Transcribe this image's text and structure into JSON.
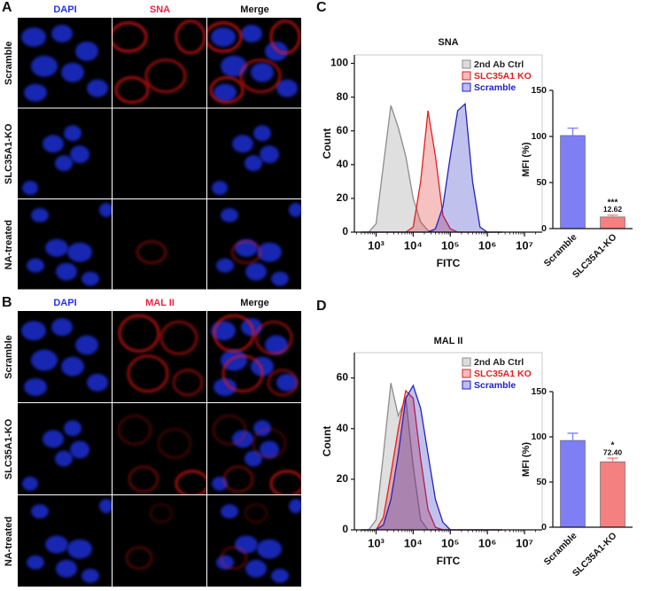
{
  "panel_labels": [
    "A",
    "B",
    "C",
    "D"
  ],
  "microscopy": [
    {
      "columns": [
        "DAPI",
        "SNA",
        "Merge"
      ],
      "column_colors": [
        "#2233ee",
        "#ee2244",
        "#111111"
      ],
      "rows": [
        "Scramble",
        "SLC35A1-KO",
        "NA-treated"
      ]
    },
    {
      "columns": [
        "DAPI",
        "MAL II",
        "Merge"
      ],
      "column_colors": [
        "#2233ee",
        "#ee2244",
        "#111111"
      ],
      "rows": [
        "Scramble",
        "SLC35A1-KO",
        "NA-treated"
      ]
    }
  ],
  "chart_data": [
    {
      "type": "area",
      "title": "SNA",
      "x_label": "FITC",
      "y_label": "Count",
      "xscale": "log",
      "legend": "upper right",
      "x": [
        400,
        630,
        1000,
        1580,
        2510,
        3980,
        6310,
        10000,
        15850,
        25120,
        39810,
        63100,
        100000,
        158500,
        251200,
        398100,
        631000,
        1000000,
        1585000,
        2512000
      ],
      "series": [
        {
          "name": "2nd Ab Ctrl",
          "color": "#8c8c8c",
          "values": [
            0,
            0,
            5,
            40,
            75,
            62,
            45,
            20,
            6,
            1,
            0,
            0,
            0,
            0,
            0,
            0,
            0,
            0,
            0,
            0
          ]
        },
        {
          "name": "SLC35A1 KO",
          "color": "#e02020",
          "values": [
            0,
            0,
            0,
            0,
            0,
            0,
            0,
            3,
            30,
            72,
            45,
            10,
            2,
            0,
            0,
            0,
            0,
            0,
            0,
            0
          ]
        },
        {
          "name": "Scramble",
          "color": "#2222c0",
          "values": [
            0,
            0,
            0,
            0,
            0,
            0,
            0,
            0,
            0,
            0,
            2,
            15,
            45,
            72,
            76,
            30,
            3,
            0,
            0,
            0
          ]
        }
      ],
      "xlim": [
        260,
        30000000
      ],
      "xticks": [
        {
          "value": 1000,
          "label": "10³"
        },
        {
          "value": 10000,
          "label": "10⁴"
        },
        {
          "value": 100000,
          "label": "10⁵"
        },
        {
          "value": 1000000,
          "label": "10⁶"
        },
        {
          "value": 10000000,
          "label": "10⁷"
        }
      ],
      "ylim": [
        0,
        105
      ],
      "yticks": [
        0,
        20,
        40,
        60,
        80,
        100
      ]
    },
    {
      "type": "bar",
      "y_label": "MFI (%)",
      "categories": [
        "Scramble",
        "SLC35A1-KO"
      ],
      "colors": [
        "#7f7ff5",
        "#f58080"
      ],
      "values": [
        101,
        12.62
      ],
      "errors": [
        8,
        2
      ],
      "value_labels": [
        null,
        "12.62"
      ],
      "significance": [
        null,
        "***"
      ],
      "ylim": [
        0,
        150
      ],
      "yticks": [
        0,
        50,
        100,
        150
      ]
    },
    {
      "type": "area",
      "title": "MAL II",
      "x_label": "FITC",
      "y_label": "Count",
      "xscale": "log",
      "legend": "upper right",
      "x": [
        400,
        630,
        1000,
        1580,
        2510,
        3980,
        6310,
        10000,
        15850,
        25120,
        39810,
        63100,
        100000,
        158500,
        251200,
        398100,
        631000,
        1000000,
        1585000,
        2512000
      ],
      "series": [
        {
          "name": "2nd Ab Ctrl",
          "color": "#8c8c8c",
          "values": [
            0,
            0,
            4,
            30,
            58,
            45,
            52,
            25,
            4,
            0,
            0,
            0,
            0,
            0,
            0,
            0,
            0,
            0,
            0,
            0
          ]
        },
        {
          "name": "SLC35A1 KO",
          "color": "#e02020",
          "values": [
            0,
            0,
            0,
            5,
            22,
            40,
            55,
            52,
            28,
            8,
            1,
            0,
            0,
            0,
            0,
            0,
            0,
            0,
            0,
            0
          ]
        },
        {
          "name": "Scramble",
          "color": "#2222c0",
          "values": [
            0,
            0,
            0,
            2,
            12,
            30,
            52,
            57,
            48,
            30,
            12,
            3,
            0,
            0,
            0,
            0,
            0,
            0,
            0,
            0
          ]
        }
      ],
      "xlim": [
        260,
        30000000
      ],
      "xticks": [
        {
          "value": 1000,
          "label": "10³"
        },
        {
          "value": 10000,
          "label": "10⁴"
        },
        {
          "value": 100000,
          "label": "10⁵"
        },
        {
          "value": 1000000,
          "label": "10⁶"
        },
        {
          "value": 10000000,
          "label": "10⁷"
        }
      ],
      "ylim": [
        0,
        70
      ],
      "yticks": [
        0,
        20,
        40,
        60
      ]
    },
    {
      "type": "bar",
      "y_label": "MFI (%)",
      "categories": [
        "Scramble",
        "SLC35A1-KO"
      ],
      "colors": [
        "#7f7ff5",
        "#f58080"
      ],
      "values": [
        96,
        72.4
      ],
      "errors": [
        8,
        4
      ],
      "value_labels": [
        null,
        "72.40"
      ],
      "significance": [
        null,
        "*"
      ],
      "ylim": [
        0,
        150
      ],
      "yticks": [
        0,
        50,
        100,
        150
      ]
    }
  ]
}
